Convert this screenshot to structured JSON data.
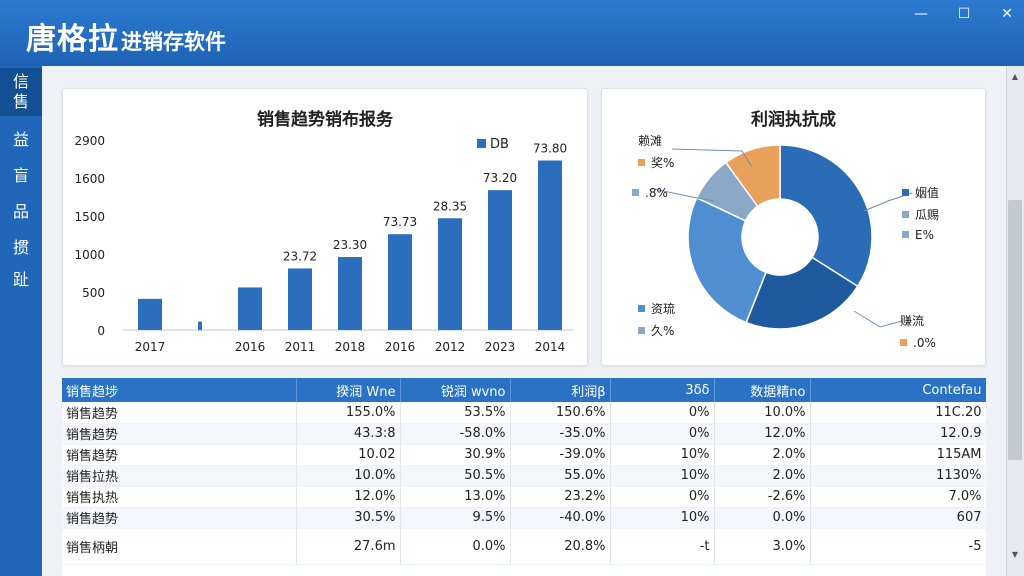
{
  "app": {
    "title_big": "唐格拉",
    "title_small": "进销存软件",
    "minimize": "—",
    "maximize": "☐",
    "close": "✕"
  },
  "nav": {
    "items": [
      {
        "label": "信\n售"
      },
      {
        "label": "益"
      },
      {
        "label": "盲"
      },
      {
        "label": "品"
      },
      {
        "label": "掼"
      },
      {
        "label": "趾"
      }
    ]
  },
  "bar_panel": {
    "title": "销售趋势销布报务"
  },
  "pie_panel": {
    "title": "利润执抗成"
  },
  "chart_data": [
    {
      "type": "bar",
      "title": "销售趋势销布报务",
      "categories": [
        "2017",
        "",
        "2016",
        "2011",
        "2018",
        "2016",
        "2012",
        "2023",
        "2014"
      ],
      "y_tick_labels": [
        "2900",
        "1600",
        "1500",
        "1000",
        "500",
        "0"
      ],
      "legend": "DB",
      "legend_position": "top-right",
      "values": [
        410,
        110,
        560,
        810,
        960,
        1260,
        1470,
        1840,
        2230
      ],
      "ylim": [
        0,
        2500
      ],
      "data_labels": [
        "",
        "",
        "",
        "23.72",
        "23.30",
        "73.73",
        "28.35",
        "73.20",
        "73.80"
      ],
      "color": "#2a6ebd",
      "grid": false
    },
    {
      "type": "pie",
      "title": "利润执抗成",
      "donut": true,
      "slices": [
        {
          "value": 34,
          "color": "#2b6cb6"
        },
        {
          "value": 22,
          "color": "#1f5a9e"
        },
        {
          "value": 26,
          "color": "#4f8fd1"
        },
        {
          "value": 8,
          "color": "#8ba8c6"
        },
        {
          "value": 10,
          "color": "#e8a05a"
        }
      ],
      "labels": [
        {
          "text": "赖滩",
          "marker": "",
          "color": ""
        },
        {
          "text": "奖%",
          "marker": "■",
          "color": "#e8a05a"
        },
        {
          "text": ".8%",
          "marker": "■",
          "color": "#8ba8c6"
        },
        {
          "text": "姻值",
          "marker": "■",
          "color": "#2b6cb6"
        },
        {
          "text": "瓜赐",
          "marker": "■",
          "color": "#8ba8c6"
        },
        {
          "text": "E%",
          "marker": "■",
          "color": "#8ba8c6"
        },
        {
          "text": "资琉",
          "marker": "■",
          "color": "#4f8fd1"
        },
        {
          "text": "久%",
          "marker": "■",
          "color": "#8ba8c6"
        },
        {
          "text": "赚流",
          "marker": "",
          "color": ""
        },
        {
          "text": ".0%",
          "marker": "■",
          "color": "#e8a05a"
        }
      ]
    }
  ],
  "table": {
    "headers": [
      "销售趋埗",
      "揆润 Wne",
      "锐润 wvno",
      "利润β",
      "3δδ",
      "数据精no",
      "Contefau"
    ],
    "rows": [
      [
        "销售趋势",
        "155.0%",
        "53.5%",
        "150.6%",
        "0%",
        "10.0%",
        "11C.20"
      ],
      [
        "销售趋势",
        "43.3:8",
        "-58.0%",
        "-35.0%",
        "0%",
        "12.0%",
        "12.0.9"
      ],
      [
        "销售趋势",
        "10.02",
        "30.9%",
        "-39.0%",
        "10%",
        "2.0%",
        "115AM"
      ],
      [
        "销售拉热",
        "10.0%",
        "50.5%",
        "55.0%",
        "10%",
        "2.0%",
        "1130%"
      ],
      [
        "销售执热",
        "12.0%",
        "13.0%",
        "23.2%",
        "0%",
        "-2.6%",
        "7.0%"
      ],
      [
        "销售趋势",
        "30.5%",
        "9.5%",
        "-40.0%",
        "10%",
        "0.0%",
        "607"
      ],
      [
        "销售柄朝",
        "27.6m",
        "0.0%",
        "20.8%",
        "-t",
        "3.0%",
        "-5"
      ]
    ]
  }
}
